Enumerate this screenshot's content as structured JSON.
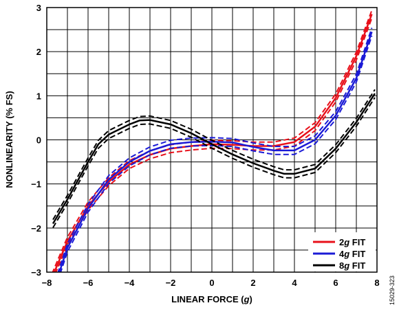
{
  "chart_data": {
    "type": "line",
    "xlabel": "LINEAR FORCE (g)",
    "xlabel_parts": [
      "LINEAR FORCE (",
      "g",
      ")"
    ],
    "ylabel": "NONLINEARITY (% FS)",
    "xlim": [
      -8,
      8
    ],
    "ylim": [
      -3,
      3
    ],
    "xticks": [
      -8,
      -6,
      -4,
      -2,
      0,
      2,
      4,
      6,
      8
    ],
    "xtick_labels": [
      "−8",
      "−6",
      "−4",
      "−2",
      "0",
      "2",
      "4",
      "6",
      "8"
    ],
    "yticks": [
      -3,
      -2,
      -1,
      0,
      1,
      2,
      3
    ],
    "ytick_labels": [
      "−3",
      "−2",
      "−1",
      "0",
      "1",
      "2",
      "3"
    ],
    "grid": true,
    "legend_position": "bottom-right",
    "series": [
      {
        "name": "2g FIT",
        "label_parts": [
          "2",
          "g",
          " FIT"
        ],
        "color": "#e8101a",
        "x": [
          -7.9,
          -7.5,
          -7,
          -6,
          -5,
          -4,
          -3,
          -2,
          -1,
          0,
          1,
          2,
          3,
          4,
          5,
          6,
          7,
          7.75
        ],
        "y": [
          -3.3,
          -2.85,
          -2.3,
          -1.5,
          -0.95,
          -0.56,
          -0.34,
          -0.2,
          -0.14,
          -0.1,
          -0.11,
          -0.14,
          -0.14,
          -0.05,
          0.3,
          0.95,
          1.9,
          2.85
        ]
      },
      {
        "name": "4g FIT",
        "label_parts": [
          "4",
          "g",
          " FIT"
        ],
        "color": "#1a1ad6",
        "x": [
          -7.6,
          -7,
          -6,
          -5,
          -4,
          -3,
          -2,
          -1,
          0,
          1,
          2,
          3,
          4,
          5,
          6,
          7,
          7.75
        ],
        "y": [
          -3.3,
          -2.45,
          -1.55,
          -0.9,
          -0.5,
          -0.25,
          -0.1,
          -0.05,
          -0.04,
          -0.06,
          -0.16,
          -0.24,
          -0.24,
          0.0,
          0.55,
          1.4,
          2.45
        ]
      },
      {
        "name": "8g FIT",
        "label_parts": [
          "8",
          "g",
          " FIT"
        ],
        "color": "#000000",
        "x": [
          -7.7,
          -7,
          -6,
          -5.5,
          -5,
          -4,
          -3.5,
          -3,
          -2,
          -1,
          0,
          1,
          2,
          3,
          3.5,
          4,
          5,
          6,
          7,
          7.9
        ],
        "y": [
          -1.9,
          -1.35,
          -0.5,
          -0.1,
          0.12,
          0.35,
          0.44,
          0.45,
          0.35,
          0.15,
          -0.1,
          -0.33,
          -0.53,
          -0.7,
          -0.77,
          -0.77,
          -0.65,
          -0.2,
          0.4,
          1.05
        ]
      }
    ],
    "band_offset": 0.09,
    "figure_id": "15029-323"
  }
}
